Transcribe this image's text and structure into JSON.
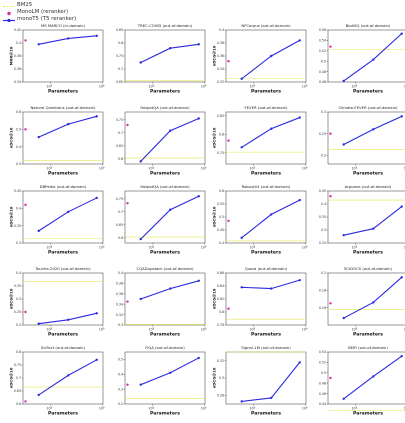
{
  "legend": {
    "items": [
      {
        "name": "BM25",
        "color": "#e6e65a",
        "style": "dashed"
      },
      {
        "name": "MonoLM (reranker)",
        "color": "#d62aa8",
        "style": "point"
      },
      {
        "name": "monoT5 (T5 reranker)",
        "color": "#2a2ae0",
        "style": "line-marker"
      }
    ]
  },
  "chart_data": [
    {
      "type": "line",
      "title": "MS MARCO (in-domain)",
      "xlabel": "Parameters",
      "ylabel": "MRR@10",
      "xscale": "log",
      "ylim": [
        0.34,
        0.42
      ],
      "x": [
        60000000,
        220000000,
        770000000
      ],
      "series": [
        {
          "name": "monoT5 (T5 reranker)",
          "values": [
            0.398,
            0.407,
            0.411
          ]
        }
      ],
      "baseline": null,
      "monolm": 0.404
    },
    {
      "type": "line",
      "title": "TREC-COVID (out-of-domain)",
      "xlabel": "Parameters",
      "ylabel": "",
      "xscale": "log",
      "ylim": [
        0.65,
        0.85
      ],
      "x": [
        60000000,
        220000000,
        770000000
      ],
      "series": [
        {
          "name": "monoT5 (T5 reranker)",
          "values": [
            0.725,
            0.78,
            0.795
          ]
        }
      ],
      "baseline": 0.655,
      "monolm": null
    },
    {
      "type": "line",
      "title": "NFCorpus (out-of-domain)",
      "xlabel": "Parameters",
      "ylabel": "nDCG@10",
      "xscale": "log",
      "ylim": [
        0.32,
        0.4
      ],
      "x": [
        60000000,
        220000000,
        770000000
      ],
      "series": [
        {
          "name": "monoT5 (T5 reranker)",
          "values": [
            0.325,
            0.36,
            0.384
          ]
        }
      ],
      "baseline": 0.325,
      "monolm": 0.352
    },
    {
      "type": "line",
      "title": "BioASQ (out-of-domain)",
      "xlabel": "Parameters",
      "ylabel": "",
      "xscale": "log",
      "ylim": [
        0.46,
        0.56
      ],
      "x": [
        60000000,
        220000000,
        770000000
      ],
      "series": [
        {
          "name": "monoT5 (T5 reranker)",
          "values": [
            0.462,
            0.503,
            0.553
          ]
        }
      ],
      "baseline": 0.522,
      "monolm": 0.528
    },
    {
      "type": "line",
      "title": "Natural Questions (out-of-domain)",
      "xlabel": "Parameters",
      "ylabel": "nDCG@10",
      "xscale": "log",
      "ylim": [
        0.3,
        0.6
      ],
      "x": [
        60000000,
        220000000,
        770000000
      ],
      "series": [
        {
          "name": "monoT5 (T5 reranker)",
          "values": [
            0.455,
            0.53,
            0.575
          ]
        }
      ],
      "baseline": 0.32,
      "monolm": 0.5
    },
    {
      "type": "line",
      "title": "HotpotQA (out-of-domain)",
      "xlabel": "Parameters",
      "ylabel": "",
      "xscale": "log",
      "ylim": [
        0.58,
        0.78
      ],
      "x": [
        60000000,
        220000000,
        770000000
      ],
      "series": [
        {
          "name": "monoT5 (T5 reranker)",
          "values": [
            0.59,
            0.708,
            0.755
          ]
        }
      ],
      "baseline": 0.603,
      "monolm": 0.73
    },
    {
      "type": "line",
      "title": "FEVER (out-of-domain)",
      "xlabel": "Parameters",
      "ylabel": "nDCG@10",
      "xscale": "log",
      "ylim": [
        0.72,
        0.86
      ],
      "x": [
        60000000,
        220000000,
        770000000
      ],
      "series": [
        {
          "name": "monoT5 (T5 reranker)",
          "values": [
            0.765,
            0.815,
            0.845
          ]
        }
      ],
      "baseline": 0.752,
      "monolm": 0.783
    },
    {
      "type": "line",
      "title": "Climate-FEVER (out-of-domain)",
      "xlabel": "Parameters",
      "ylabel": "",
      "xscale": "log",
      "ylim": [
        0.18,
        0.3
      ],
      "x": [
        60000000,
        220000000,
        770000000
      ],
      "series": [
        {
          "name": "monoT5 (T5 reranker)",
          "values": [
            0.225,
            0.26,
            0.29
          ]
        }
      ],
      "baseline": 0.213,
      "monolm": 0.25
    },
    {
      "type": "line",
      "title": "DBPedia (out-of-domain)",
      "xlabel": "Parameters",
      "ylabel": "nDCG@10",
      "xscale": "log",
      "ylim": [
        0.3,
        0.45
      ],
      "x": [
        60000000,
        220000000,
        770000000
      ],
      "series": [
        {
          "name": "monoT5 (T5 reranker)",
          "values": [
            0.335,
            0.39,
            0.43
          ]
        }
      ],
      "baseline": 0.313,
      "monolm": 0.41
    },
    {
      "type": "line",
      "title": "HotpotQA (out-of-domain)",
      "xlabel": "Parameters",
      "ylabel": "",
      "xscale": "log",
      "ylim": [
        0.58,
        0.78
      ],
      "x": [
        60000000,
        220000000,
        770000000
      ],
      "series": [
        {
          "name": "monoT5 (T5 reranker)",
          "values": [
            0.595,
            0.708,
            0.76
          ]
        }
      ],
      "baseline": 0.603,
      "monolm": 0.733
    },
    {
      "type": "line",
      "title": "Robust04 (out-of-domain)",
      "xlabel": "Parameters",
      "ylabel": "nDCG@10",
      "xscale": "log",
      "ylim": [
        0.4,
        0.6
      ],
      "x": [
        60000000,
        220000000,
        770000000
      ],
      "series": [
        {
          "name": "monoT5 (T5 reranker)",
          "values": [
            0.42,
            0.51,
            0.565
          ]
        }
      ],
      "baseline": 0.408,
      "monolm": 0.485
    },
    {
      "type": "line",
      "title": "Arguana (out-of-domain)",
      "xlabel": "Parameters",
      "ylabel": "",
      "xscale": "log",
      "ylim": [
        0.25,
        0.45
      ],
      "x": [
        60000000,
        220000000,
        770000000
      ],
      "series": [
        {
          "name": "monoT5 (T5 reranker)",
          "values": [
            0.28,
            0.305,
            0.39
          ]
        }
      ],
      "baseline": 0.415,
      "monolm": 0.43
    },
    {
      "type": "line",
      "title": "Touche-2020 (out-of-domain)",
      "xlabel": "Parameters",
      "ylabel": "nDCG@10",
      "xscale": "log",
      "ylim": [
        0.2,
        0.4
      ],
      "x": [
        60000000,
        220000000,
        770000000
      ],
      "series": [
        {
          "name": "monoT5 (T5 reranker)",
          "values": [
            0.205,
            0.22,
            0.245
          ]
        }
      ],
      "baseline": 0.367,
      "monolm": 0.25
    },
    {
      "type": "line",
      "title": "CQADupstack (out-of-domain)",
      "xlabel": "Parameters",
      "ylabel": "",
      "xscale": "log",
      "ylim": [
        0.3,
        0.4
      ],
      "x": [
        60000000,
        220000000,
        770000000
      ],
      "series": [
        {
          "name": "monoT5 (T5 reranker)",
          "values": [
            0.35,
            0.37,
            0.385
          ]
        }
      ],
      "baseline": 0.301,
      "monolm": 0.345
    },
    {
      "type": "line",
      "title": "Quora (out-of-domain)",
      "xlabel": "Parameters",
      "ylabel": "nDCG@10",
      "xscale": "log",
      "ylim": [
        0.78,
        0.86
      ],
      "x": [
        60000000,
        220000000,
        770000000
      ],
      "series": [
        {
          "name": "monoT5 (T5 reranker)",
          "values": [
            0.838,
            0.836,
            0.849
          ]
        }
      ],
      "baseline": 0.789,
      "monolm": 0.805
    },
    {
      "type": "line",
      "title": "SCIDOCS (out-of-domain)",
      "xlabel": "Parameters",
      "ylabel": "",
      "xscale": "log",
      "ylim": [
        0.14,
        0.2
      ],
      "x": [
        60000000,
        220000000,
        770000000
      ],
      "series": [
        {
          "name": "monoT5 (T5 reranker)",
          "values": [
            0.148,
            0.166,
            0.195
          ]
        }
      ],
      "baseline": 0.158,
      "monolm": 0.165
    },
    {
      "type": "line",
      "title": "SciFact (out-of-domain)",
      "xlabel": "Parameters",
      "ylabel": "nDCG@10",
      "xscale": "log",
      "ylim": [
        0.6,
        0.8
      ],
      "x": [
        60000000,
        220000000,
        770000000
      ],
      "series": [
        {
          "name": "monoT5 (T5 reranker)",
          "values": [
            0.635,
            0.71,
            0.77
          ]
        }
      ],
      "baseline": 0.665,
      "monolm": 0.61
    },
    {
      "type": "line",
      "title": "FiQA (out-of-domain)",
      "xlabel": "Parameters",
      "ylabel": "",
      "xscale": "log",
      "ylim": [
        0.2,
        0.55
      ],
      "x": [
        60000000,
        220000000,
        770000000
      ],
      "series": [
        {
          "name": "monoT5 (T5 reranker)",
          "values": [
            0.33,
            0.41,
            0.51
          ]
        }
      ],
      "baseline": 0.236,
      "monolm": 0.33
    },
    {
      "type": "line",
      "title": "Signal-1M (out-of-domain)",
      "xlabel": "Parameters",
      "ylabel": "nDCG@10",
      "xscale": "log",
      "ylim": [
        0.27,
        0.33
      ],
      "x": [
        60000000,
        220000000,
        770000000
      ],
      "series": [
        {
          "name": "monoT5 (T5 reranker)",
          "values": [
            0.273,
            0.277,
            0.318
          ]
        }
      ],
      "baseline": 0.33,
      "monolm": null
    },
    {
      "type": "line",
      "title": "BEIR (out-of-domain)",
      "xlabel": "Parameters",
      "ylabel": "",
      "xscale": "log",
      "ylim": [
        0.44,
        0.54
      ],
      "x": [
        60000000,
        220000000,
        770000000
      ],
      "series": [
        {
          "name": "monoT5 (T5 reranker)",
          "values": [
            0.45,
            0.493,
            0.532
          ]
        }
      ],
      "baseline": 0.428,
      "monolm": 0.49
    }
  ]
}
